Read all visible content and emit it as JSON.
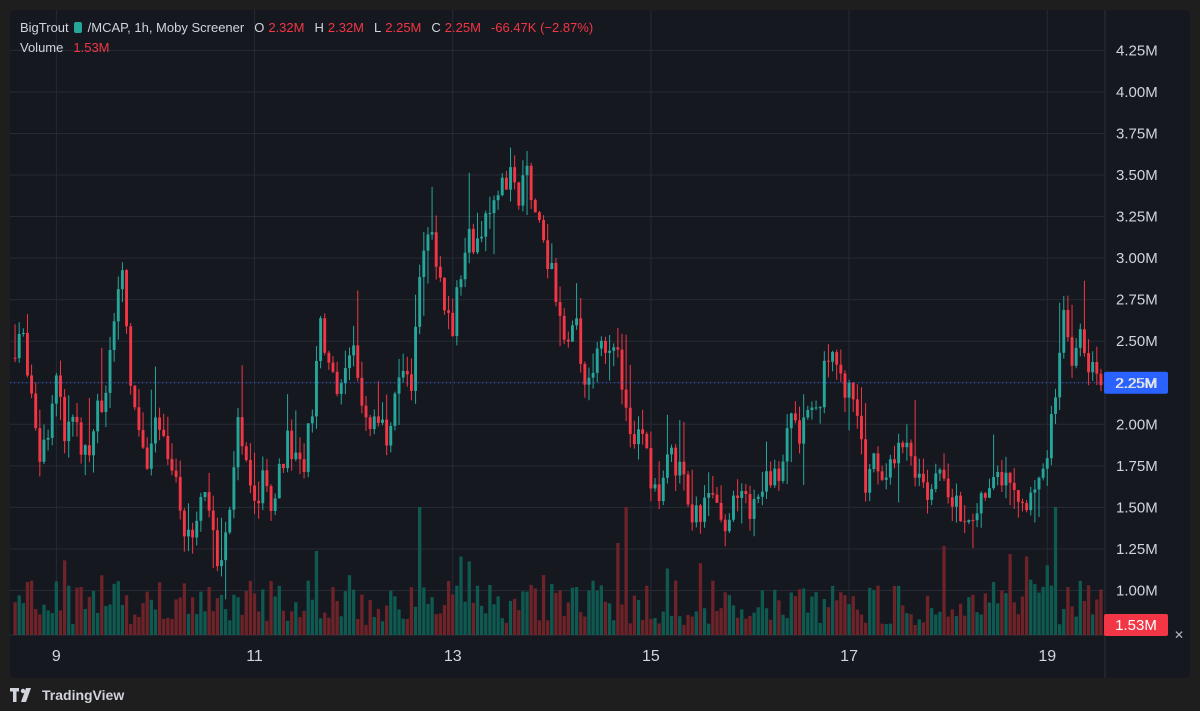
{
  "legend": {
    "symbol": "BigTrout",
    "pair": "/MCAP, 1h, Moby Screener",
    "o_label": "O",
    "o": "2.32M",
    "h_label": "H",
    "h": "2.32M",
    "l_label": "L",
    "l": "2.25M",
    "c_label": "C",
    "c": "2.25M",
    "change": "-66.47K (−2.87%)",
    "volume_label": "Volume",
    "volume_value": "1.53M"
  },
  "price_badge": "2.25M",
  "volume_badge": "1.53M",
  "footer": {
    "brand": "TradingView"
  },
  "colors": {
    "up": "#26a69a",
    "down": "#f23645",
    "up_volume": "#0f5a50",
    "down_volume": "#6e2328",
    "price_line": "#2962ff",
    "grid": "#262a35",
    "axis_text": "#d1d4dc"
  },
  "chart_data": {
    "type": "candlestick",
    "timeframe": "1h",
    "x_ticks": [
      "9",
      "11",
      "13",
      "15",
      "17",
      "19"
    ],
    "y_ticks": [
      "1.00M",
      "1.25M",
      "1.50M",
      "1.75M",
      "2.00M",
      "2.25M",
      "2.50M",
      "2.75M",
      "3.00M",
      "3.25M",
      "3.50M",
      "3.75M",
      "4.00M",
      "4.25M"
    ],
    "y_tick_values": [
      1.0,
      1.25,
      1.5,
      1.75,
      2.0,
      2.25,
      2.5,
      2.75,
      3.0,
      3.25,
      3.5,
      3.75,
      4.0,
      4.25
    ],
    "ylim": [
      0.75,
      4.45
    ],
    "y_unit": "M",
    "last_price": 2.25,
    "last_volume": "1.53M",
    "price_path": [
      [
        0,
        2.4
      ],
      [
        2,
        2.55
      ],
      [
        4,
        2.2
      ],
      [
        6,
        1.85
      ],
      [
        8,
        2.0
      ],
      [
        10,
        2.25
      ],
      [
        12,
        1.95
      ],
      [
        14,
        2.05
      ],
      [
        16,
        1.9
      ],
      [
        18,
        1.85
      ],
      [
        20,
        2.1
      ],
      [
        22,
        2.2
      ],
      [
        24,
        2.55
      ],
      [
        26,
        2.9
      ],
      [
        28,
        2.2
      ],
      [
        30,
        2.0
      ],
      [
        32,
        1.75
      ],
      [
        34,
        2.0
      ],
      [
        36,
        1.85
      ],
      [
        38,
        1.7
      ],
      [
        40,
        1.5
      ],
      [
        42,
        1.3
      ],
      [
        44,
        1.5
      ],
      [
        46,
        1.6
      ],
      [
        48,
        1.3
      ],
      [
        50,
        1.15
      ],
      [
        52,
        1.55
      ],
      [
        54,
        2.0
      ],
      [
        56,
        1.75
      ],
      [
        58,
        1.55
      ],
      [
        60,
        1.65
      ],
      [
        62,
        1.5
      ],
      [
        64,
        1.7
      ],
      [
        66,
        1.95
      ],
      [
        68,
        1.8
      ],
      [
        70,
        1.75
      ],
      [
        72,
        2.1
      ],
      [
        74,
        2.55
      ],
      [
        76,
        2.4
      ],
      [
        78,
        2.2
      ],
      [
        80,
        2.3
      ],
      [
        82,
        2.45
      ],
      [
        84,
        2.05
      ],
      [
        86,
        1.95
      ],
      [
        88,
        2.05
      ],
      [
        90,
        1.95
      ],
      [
        92,
        2.15
      ],
      [
        94,
        2.35
      ],
      [
        96,
        2.2
      ],
      [
        98,
        2.9
      ],
      [
        100,
        3.2
      ],
      [
        102,
        2.95
      ],
      [
        104,
        2.75
      ],
      [
        106,
        2.6
      ],
      [
        108,
        2.9
      ],
      [
        110,
        3.15
      ],
      [
        112,
        3.05
      ],
      [
        114,
        3.25
      ],
      [
        116,
        3.3
      ],
      [
        118,
        3.4
      ],
      [
        120,
        3.6
      ],
      [
        122,
        3.4
      ],
      [
        124,
        3.5
      ],
      [
        126,
        3.3
      ],
      [
        128,
        3.05
      ],
      [
        130,
        2.9
      ],
      [
        132,
        2.7
      ],
      [
        134,
        2.45
      ],
      [
        136,
        2.6
      ],
      [
        138,
        2.3
      ],
      [
        140,
        2.25
      ],
      [
        142,
        2.5
      ],
      [
        144,
        2.5
      ],
      [
        146,
        2.4
      ],
      [
        148,
        2.05
      ],
      [
        150,
        1.95
      ],
      [
        152,
        1.9
      ],
      [
        154,
        1.7
      ],
      [
        156,
        1.55
      ],
      [
        158,
        1.8
      ],
      [
        160,
        1.75
      ],
      [
        162,
        1.65
      ],
      [
        164,
        1.5
      ],
      [
        166,
        1.45
      ],
      [
        168,
        1.6
      ],
      [
        170,
        1.45
      ],
      [
        172,
        1.4
      ],
      [
        174,
        1.55
      ],
      [
        176,
        1.6
      ],
      [
        178,
        1.5
      ],
      [
        180,
        1.55
      ],
      [
        182,
        1.7
      ],
      [
        184,
        1.65
      ],
      [
        186,
        1.75
      ],
      [
        188,
        2.05
      ],
      [
        190,
        1.95
      ],
      [
        192,
        2.15
      ],
      [
        194,
        2.05
      ],
      [
        196,
        2.3
      ],
      [
        198,
        2.45
      ],
      [
        200,
        2.3
      ],
      [
        202,
        2.2
      ],
      [
        204,
        2.0
      ],
      [
        206,
        1.65
      ],
      [
        208,
        1.75
      ],
      [
        210,
        1.65
      ],
      [
        212,
        1.7
      ],
      [
        214,
        1.85
      ],
      [
        216,
        1.95
      ],
      [
        218,
        1.7
      ],
      [
        220,
        1.65
      ],
      [
        222,
        1.55
      ],
      [
        224,
        1.7
      ],
      [
        226,
        1.6
      ],
      [
        228,
        1.5
      ],
      [
        230,
        1.5
      ],
      [
        232,
        1.45
      ],
      [
        234,
        1.55
      ],
      [
        236,
        1.7
      ],
      [
        238,
        1.75
      ],
      [
        240,
        1.65
      ],
      [
        242,
        1.55
      ],
      [
        244,
        1.6
      ],
      [
        246,
        1.5
      ],
      [
        248,
        1.7
      ],
      [
        250,
        1.85
      ],
      [
        252,
        2.2
      ],
      [
        254,
        2.6
      ],
      [
        256,
        2.3
      ],
      [
        258,
        2.55
      ],
      [
        260,
        2.35
      ],
      [
        262,
        2.3
      ],
      [
        263,
        2.25
      ]
    ],
    "volume_scale_note": "volumes are relative (0-1) heights of the volume pane"
  }
}
